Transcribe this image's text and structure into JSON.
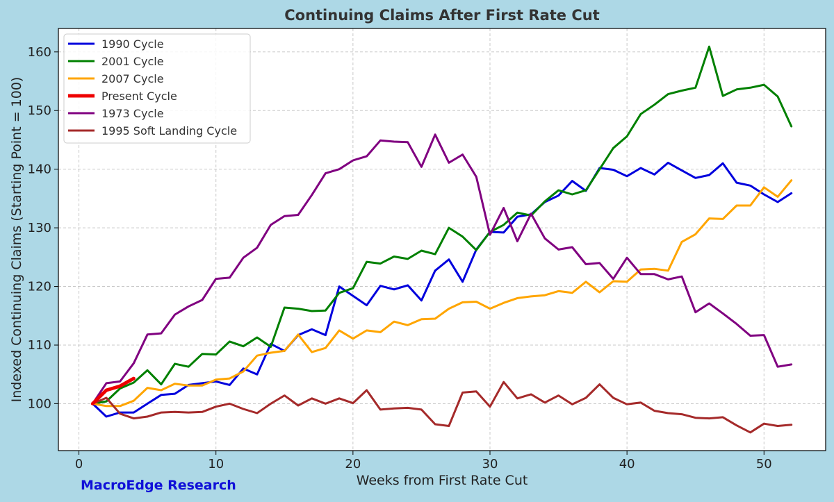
{
  "chart_data": {
    "type": "line",
    "title": "Continuing Claims After First Rate Cut",
    "xlabel": "Weeks from First Rate Cut",
    "ylabel": "Indexed Continuing Claims (Starting Point = 100)",
    "xlim": [
      -1.5,
      54.5
    ],
    "ylim": [
      92,
      164
    ],
    "xticks": [
      0,
      10,
      20,
      30,
      40,
      50
    ],
    "yticks": [
      100,
      110,
      120,
      130,
      140,
      150,
      160
    ],
    "grid": true,
    "legend_position": "top-left",
    "series": [
      {
        "name": "1990 Cycle",
        "color": "#0000dd",
        "width": 3,
        "x": [
          1,
          2,
          3,
          4,
          5,
          6,
          7,
          8,
          9,
          10,
          11,
          12,
          13,
          14,
          15,
          16,
          17,
          18,
          19,
          20,
          21,
          22,
          23,
          24,
          25,
          26,
          27,
          28,
          29,
          30,
          31,
          32,
          33,
          34,
          35,
          36,
          37,
          38,
          39,
          40,
          41,
          42,
          43,
          44,
          45,
          46,
          47,
          48,
          49,
          50,
          51,
          52
        ],
        "values": [
          100,
          97.8,
          98.5,
          98.5,
          100,
          101.5,
          101.7,
          103.2,
          103.5,
          103.8,
          103.2,
          106,
          105,
          110.2,
          109,
          111.7,
          112.7,
          111.7,
          120,
          118.4,
          116.8,
          120.1,
          119.5,
          120.2,
          117.6,
          122.7,
          124.6,
          120.8,
          126.3,
          129.3,
          129.2,
          131.9,
          132.3,
          134.4,
          135.5,
          138,
          136.3,
          140.2,
          139.9,
          138.8,
          140.2,
          139.1,
          141.1,
          139.8,
          138.5,
          139,
          141,
          137.7,
          137.2,
          135.7,
          134.4,
          135.9
        ]
      },
      {
        "name": "2001 Cycle",
        "color": "#008000",
        "width": 3,
        "x": [
          1,
          2,
          3,
          4,
          5,
          6,
          7,
          8,
          9,
          10,
          11,
          12,
          13,
          14,
          15,
          16,
          17,
          18,
          19,
          20,
          21,
          22,
          23,
          24,
          25,
          26,
          27,
          28,
          29,
          30,
          31,
          32,
          33,
          34,
          35,
          36,
          37,
          38,
          39,
          40,
          41,
          42,
          43,
          44,
          45,
          46,
          47,
          48,
          49,
          50,
          51,
          52
        ],
        "values": [
          100,
          100.4,
          102.6,
          103.6,
          105.7,
          103.3,
          106.8,
          106.3,
          108.5,
          108.4,
          110.6,
          109.8,
          111.3,
          109.7,
          116.4,
          116.2,
          115.8,
          115.9,
          118.9,
          119.7,
          124.2,
          123.9,
          125.1,
          124.7,
          126.1,
          125.5,
          130,
          128.5,
          126.2,
          129.3,
          130.5,
          132.6,
          132.1,
          134.5,
          136.4,
          135.7,
          136.4,
          140,
          143.6,
          145.6,
          149.4,
          151,
          152.8,
          153.4,
          153.9,
          160.9,
          152.5,
          153.6,
          153.9,
          154.4,
          152.4,
          147.3
        ]
      },
      {
        "name": "2007 Cycle",
        "color": "#ffa500",
        "width": 3,
        "x": [
          1,
          2,
          3,
          4,
          5,
          6,
          7,
          8,
          9,
          10,
          11,
          12,
          13,
          14,
          15,
          16,
          17,
          18,
          19,
          20,
          21,
          22,
          23,
          24,
          25,
          26,
          27,
          28,
          29,
          30,
          31,
          32,
          33,
          34,
          35,
          36,
          37,
          38,
          39,
          40,
          41,
          42,
          43,
          44,
          45,
          46,
          47,
          48,
          49,
          50,
          51,
          52
        ],
        "values": [
          100,
          99.6,
          99.6,
          100.5,
          102.7,
          102.3,
          103.4,
          103.1,
          103.1,
          104.1,
          104.3,
          105.5,
          108.2,
          108.7,
          109,
          111.8,
          108.8,
          109.5,
          112.5,
          111.1,
          112.5,
          112.2,
          114,
          113.4,
          114.4,
          114.5,
          116.2,
          117.3,
          117.4,
          116.2,
          117.2,
          118,
          118.3,
          118.5,
          119.2,
          118.9,
          120.8,
          119,
          120.9,
          120.8,
          122.9,
          123,
          122.7,
          127.6,
          128.9,
          131.6,
          131.5,
          133.8,
          133.8,
          136.9,
          135.3,
          138.1
        ]
      },
      {
        "name": "Present Cycle",
        "color": "#ee0000",
        "width": 5,
        "x": [
          1,
          2,
          3,
          4
        ],
        "values": [
          100,
          102.3,
          103,
          104.3
        ]
      },
      {
        "name": "1973 Cycle",
        "color": "#800080",
        "width": 3,
        "x": [
          1,
          2,
          3,
          4,
          5,
          6,
          7,
          8,
          9,
          10,
          11,
          12,
          13,
          14,
          15,
          16,
          17,
          18,
          19,
          20,
          21,
          22,
          23,
          24,
          25,
          26,
          27,
          28,
          29,
          30,
          31,
          32,
          33,
          34,
          35,
          36,
          37,
          38,
          39,
          40,
          41,
          42,
          43,
          44,
          45,
          46,
          47,
          48,
          49,
          50,
          51,
          52
        ],
        "values": [
          100,
          103.5,
          103.8,
          106.9,
          111.8,
          112,
          115.2,
          116.6,
          117.7,
          121.3,
          121.5,
          124.9,
          126.6,
          130.5,
          132,
          132.2,
          135.6,
          139.3,
          140,
          141.5,
          142.2,
          144.9,
          144.7,
          144.6,
          140.4,
          145.9,
          141.1,
          142.5,
          138.7,
          128.8,
          133.4,
          127.7,
          132.4,
          128.2,
          126.3,
          126.7,
          123.8,
          124,
          121.3,
          124.9,
          122.1,
          122.1,
          121.2,
          121.7,
          115.6,
          117.1,
          115.4,
          113.6,
          111.6,
          111.7,
          106.3,
          106.7
        ]
      },
      {
        "name": "1995 Soft Landing Cycle",
        "color": "#a52a2a",
        "width": 3,
        "x": [
          1,
          2,
          3,
          4,
          5,
          6,
          7,
          8,
          9,
          10,
          11,
          12,
          13,
          14,
          15,
          16,
          17,
          18,
          19,
          20,
          21,
          22,
          23,
          24,
          25,
          26,
          27,
          28,
          29,
          30,
          31,
          32,
          33,
          34,
          35,
          36,
          37,
          38,
          39,
          40,
          41,
          42,
          43,
          44,
          45,
          46,
          47,
          48,
          49,
          50,
          51,
          52
        ],
        "values": [
          100,
          101,
          98.3,
          97.5,
          97.8,
          98.5,
          98.6,
          98.5,
          98.6,
          99.5,
          100,
          99.1,
          98.4,
          100,
          101.4,
          99.7,
          100.9,
          100,
          100.9,
          100.1,
          102.3,
          99,
          99.2,
          99.3,
          99,
          96.5,
          96.2,
          101.9,
          102.1,
          99.5,
          103.7,
          100.9,
          101.6,
          100.2,
          101.4,
          99.9,
          101,
          103.3,
          101,
          99.9,
          100.2,
          98.8,
          98.4,
          98.2,
          97.6,
          97.5,
          97.7,
          96.3,
          95.1,
          96.6,
          96.2,
          96.4
        ]
      }
    ]
  },
  "watermark": "MacroEdge Research"
}
